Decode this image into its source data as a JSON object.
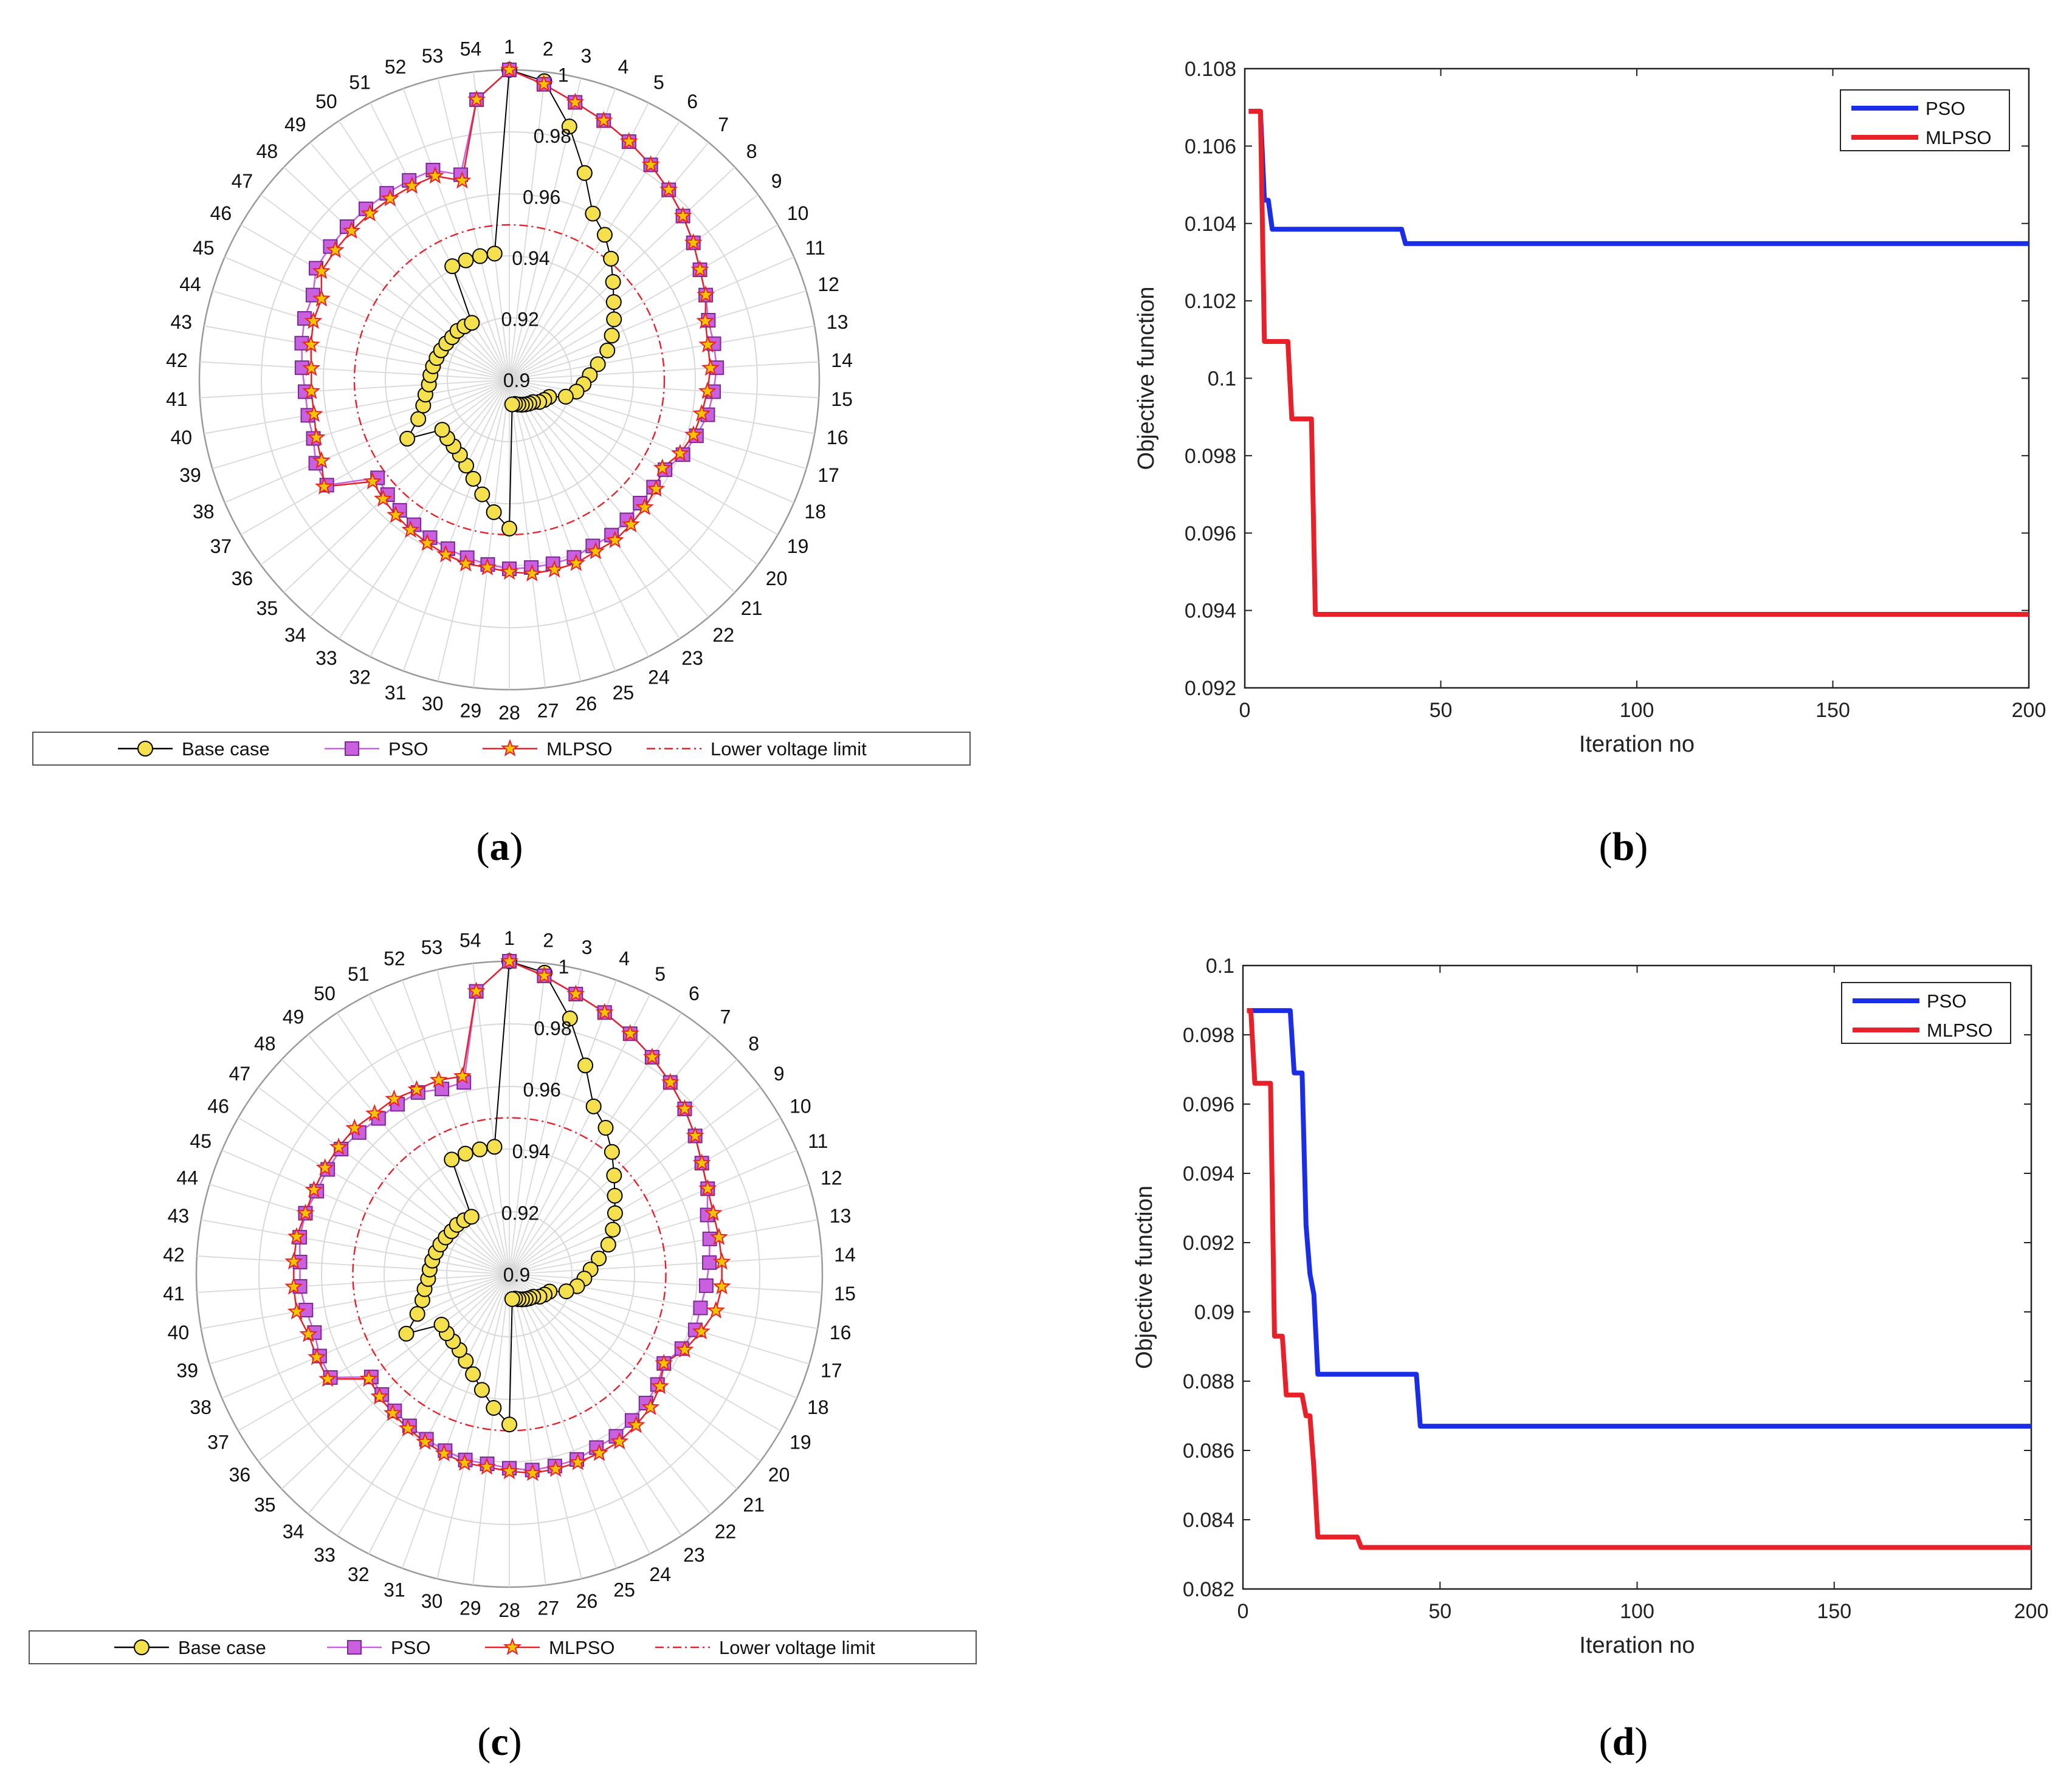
{
  "figure_captions": [
    {
      "prefix": "(",
      "letter": "a",
      "suffix": ")"
    },
    {
      "prefix": "(",
      "letter": "b",
      "suffix": ")"
    },
    {
      "prefix": "(",
      "letter": "c",
      "suffix": ")"
    },
    {
      "prefix": "(",
      "letter": "d",
      "suffix": ")"
    }
  ],
  "colors": {
    "base_marker": "#f4e04d",
    "pso_marker": "#c860e0",
    "mlpso_line": "#e8202a",
    "pso_line": "#1a2ee8",
    "limit_line": "#e8202a",
    "grid": "#d9d9d9"
  },
  "chart_data": [
    {
      "id": "a",
      "type": "polar-line",
      "spoke_labels": [
        "1",
        "2",
        "3",
        "4",
        "5",
        "6",
        "7",
        "8",
        "9",
        "10",
        "11",
        "12",
        "13",
        "14",
        "15",
        "16",
        "17",
        "18",
        "19",
        "20",
        "21",
        "22",
        "23",
        "24",
        "25",
        "26",
        "27",
        "28",
        "29",
        "30",
        "31",
        "32",
        "33",
        "34",
        "35",
        "36",
        "37",
        "38",
        "39",
        "40",
        "41",
        "42",
        "43",
        "44",
        "45",
        "46",
        "47",
        "48",
        "49",
        "50",
        "51",
        "52",
        "53",
        "54"
      ],
      "rlim": [
        0.9,
        1.0
      ],
      "radial_tick_labels": [
        "0.9",
        "0.92",
        "0.94",
        "0.96",
        "0.98",
        "1"
      ],
      "radial_tick_values": [
        0.9,
        0.92,
        0.94,
        0.96,
        0.98,
        1.0
      ],
      "lower_voltage_limit": 0.95,
      "legend": [
        "Base case",
        "PSO",
        "MLPSO",
        "Lower voltage limit"
      ],
      "series": [
        {
          "name": "Base case",
          "values": [
            1.0,
            0.997,
            0.984,
            0.971,
            0.96,
            0.956,
            0.951,
            0.946,
            0.942,
            0.939,
            0.936,
            0.933,
            0.929,
            0.926,
            0.924,
            0.922,
            0.919,
            0.914,
            0.913,
            0.912,
            0.9105,
            0.91,
            0.9095,
            0.909,
            0.9085,
            0.908,
            0.908,
            0.948,
            0.943,
            0.938,
            0.934,
            0.931,
            0.929,
            0.928,
            0.9275,
            0.927,
            0.938,
            0.932,
            0.929,
            0.9275,
            0.926,
            0.9255,
            0.925,
            0.9245,
            0.924,
            0.9235,
            0.923,
            0.923,
            0.9225,
            0.922,
            0.941,
            0.941,
            0.941,
            0.941
          ]
        },
        {
          "name": "PSO",
          "values": [
            1.0,
            0.996,
            0.992,
            0.989,
            0.986,
            0.983,
            0.98,
            0.977,
            0.974,
            0.971,
            0.969,
            0.967,
            0.967,
            0.967,
            0.966,
            0.965,
            0.963,
            0.961,
            0.958,
            0.958,
            0.958,
            0.959,
            0.96,
            0.96,
            0.961,
            0.961,
            0.961,
            0.961,
            0.96,
            0.959,
            0.958,
            0.957,
            0.956,
            0.955,
            0.954,
            0.953,
            0.968,
            0.968,
            0.966,
            0.966,
            0.966,
            0.967,
            0.968,
            0.969,
            0.969,
            0.972,
            0.972,
            0.972,
            0.972,
            0.972,
            0.972,
            0.972,
            0.968,
            0.991
          ]
        },
        {
          "name": "MLPSO",
          "values": [
            1.0,
            0.996,
            0.992,
            0.989,
            0.986,
            0.983,
            0.98,
            0.977,
            0.974,
            0.971,
            0.969,
            0.966,
            0.965,
            0.965,
            0.964,
            0.963,
            0.962,
            0.96,
            0.957,
            0.959,
            0.96,
            0.961,
            0.962,
            0.962,
            0.963,
            0.963,
            0.963,
            0.962,
            0.961,
            0.961,
            0.96,
            0.959,
            0.958,
            0.957,
            0.956,
            0.955,
            0.969,
            0.966,
            0.965,
            0.964,
            0.964,
            0.964,
            0.965,
            0.966,
            0.966,
            0.97,
            0.97,
            0.97,
            0.97,
            0.97,
            0.97,
            0.97,
            0.966,
            0.991
          ]
        }
      ]
    },
    {
      "id": "b",
      "type": "line",
      "xlabel": "Iteration no",
      "ylabel": "Objective function",
      "xlim": [
        0,
        200
      ],
      "ylim": [
        0.092,
        0.108
      ],
      "xticks": [
        "0",
        "50",
        "100",
        "150",
        "200"
      ],
      "xtick_values": [
        0,
        50,
        100,
        150,
        200
      ],
      "yticks": [
        "0.092",
        "0.094",
        "0.096",
        "0.098",
        "0.1",
        "0.102",
        "0.104",
        "0.106",
        "0.108"
      ],
      "ytick_values": [
        0.092,
        0.094,
        0.096,
        0.098,
        0.1,
        0.102,
        0.104,
        0.106,
        0.108
      ],
      "legend": [
        "PSO",
        "MLPSO"
      ],
      "series": [
        {
          "name": "PSO",
          "x": [
            1,
            4,
            5,
            6,
            7,
            40,
            41,
            200
          ],
          "y": [
            0.1069,
            0.1069,
            0.1046,
            0.1046,
            0.10385,
            0.10385,
            0.10348,
            0.10348
          ]
        },
        {
          "name": "MLPSO",
          "x": [
            1,
            4,
            5,
            11,
            12,
            17,
            18,
            200
          ],
          "y": [
            0.1069,
            0.1069,
            0.10095,
            0.10095,
            0.09895,
            0.09895,
            0.0939,
            0.0939
          ]
        }
      ]
    },
    {
      "id": "c",
      "type": "polar-line",
      "spoke_labels": [
        "1",
        "2",
        "3",
        "4",
        "5",
        "6",
        "7",
        "8",
        "9",
        "10",
        "11",
        "12",
        "13",
        "14",
        "15",
        "16",
        "17",
        "18",
        "19",
        "20",
        "21",
        "22",
        "23",
        "24",
        "25",
        "26",
        "27",
        "28",
        "29",
        "30",
        "31",
        "32",
        "33",
        "34",
        "35",
        "36",
        "37",
        "38",
        "39",
        "40",
        "41",
        "42",
        "43",
        "44",
        "45",
        "46",
        "47",
        "48",
        "49",
        "50",
        "51",
        "52",
        "53",
        "54"
      ],
      "rlim": [
        0.9,
        1.0
      ],
      "radial_tick_labels": [
        "0.9",
        "0.92",
        "0.94",
        "0.96",
        "0.98",
        "1"
      ],
      "radial_tick_values": [
        0.9,
        0.92,
        0.94,
        0.96,
        0.98,
        1.0
      ],
      "lower_voltage_limit": 0.95,
      "legend": [
        "Base case",
        "PSO",
        "MLPSO",
        "Lower voltage limit"
      ],
      "series": [
        {
          "name": "Base case",
          "values": [
            1.0,
            0.997,
            0.984,
            0.971,
            0.96,
            0.956,
            0.951,
            0.946,
            0.942,
            0.939,
            0.936,
            0.933,
            0.929,
            0.926,
            0.924,
            0.922,
            0.919,
            0.914,
            0.913,
            0.912,
            0.9105,
            0.91,
            0.9095,
            0.909,
            0.9085,
            0.908,
            0.908,
            0.948,
            0.943,
            0.938,
            0.934,
            0.931,
            0.929,
            0.928,
            0.9275,
            0.927,
            0.938,
            0.932,
            0.929,
            0.9275,
            0.926,
            0.9255,
            0.925,
            0.9245,
            0.924,
            0.9235,
            0.923,
            0.923,
            0.9225,
            0.922,
            0.941,
            0.941,
            0.941,
            0.941
          ]
        },
        {
          "name": "PSO",
          "values": [
            1.0,
            0.996,
            0.992,
            0.989,
            0.986,
            0.983,
            0.98,
            0.977,
            0.974,
            0.971,
            0.969,
            0.966,
            0.965,
            0.964,
            0.963,
            0.962,
            0.962,
            0.96,
            0.957,
            0.959,
            0.96,
            0.961,
            0.962,
            0.962,
            0.963,
            0.963,
            0.963,
            0.962,
            0.961,
            0.961,
            0.96,
            0.959,
            0.958,
            0.957,
            0.956,
            0.955,
            0.966,
            0.966,
            0.965,
            0.966,
            0.967,
            0.967,
            0.968,
            0.968,
            0.967,
            0.967,
            0.967,
            0.966,
            0.965,
            0.965,
            0.965,
            0.963,
            0.963,
            0.991
          ]
        },
        {
          "name": "MLPSO",
          "values": [
            1.0,
            0.996,
            0.992,
            0.989,
            0.986,
            0.983,
            0.98,
            0.977,
            0.974,
            0.971,
            0.969,
            0.968,
            0.968,
            0.968,
            0.968,
            0.967,
            0.964,
            0.961,
            0.957,
            0.96,
            0.962,
            0.963,
            0.964,
            0.964,
            0.964,
            0.964,
            0.964,
            0.963,
            0.962,
            0.962,
            0.961,
            0.96,
            0.959,
            0.958,
            0.957,
            0.956,
            0.967,
            0.967,
            0.967,
            0.969,
            0.969,
            0.969,
            0.969,
            0.968,
            0.968,
            0.968,
            0.968,
            0.968,
            0.967,
            0.967,
            0.966,
            0.966,
            0.965,
            0.991
          ]
        }
      ]
    },
    {
      "id": "d",
      "type": "line",
      "xlabel": "Iteration no",
      "ylabel": "Objective function",
      "xlim": [
        0,
        200
      ],
      "ylim": [
        0.082,
        0.1
      ],
      "xticks": [
        "0",
        "50",
        "100",
        "150",
        "200"
      ],
      "xtick_values": [
        0,
        50,
        100,
        150,
        200
      ],
      "yticks": [
        "0.082",
        "0.084",
        "0.086",
        "0.088",
        "0.09",
        "0.092",
        "0.094",
        "0.096",
        "0.098",
        "0.1"
      ],
      "ytick_values": [
        0.082,
        0.084,
        0.086,
        0.088,
        0.09,
        0.092,
        0.094,
        0.096,
        0.098,
        0.1
      ],
      "legend": [
        "PSO",
        "MLPSO"
      ],
      "series": [
        {
          "name": "PSO",
          "x": [
            1,
            12,
            13,
            15,
            16,
            17,
            18,
            19,
            20,
            44,
            45,
            200
          ],
          "y": [
            0.0987,
            0.0987,
            0.0969,
            0.0969,
            0.0925,
            0.0911,
            0.0905,
            0.0882,
            0.0882,
            0.0882,
            0.0867,
            0.0867
          ]
        },
        {
          "name": "MLPSO",
          "x": [
            1,
            2,
            3,
            7,
            8,
            9,
            10,
            11,
            12,
            15,
            16,
            17,
            18,
            19,
            29,
            30,
            200
          ],
          "y": [
            0.0987,
            0.0987,
            0.0966,
            0.0966,
            0.0893,
            0.0893,
            0.0893,
            0.0876,
            0.0876,
            0.0876,
            0.087,
            0.087,
            0.0855,
            0.0835,
            0.0835,
            0.0832,
            0.0832
          ]
        }
      ]
    }
  ]
}
